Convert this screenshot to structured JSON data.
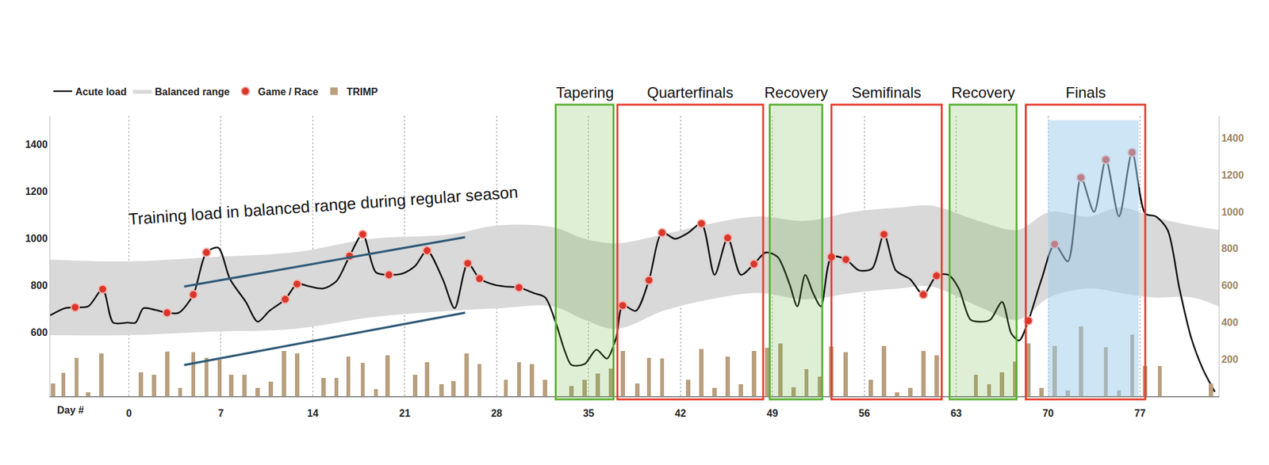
{
  "chart_data": {
    "type": "line",
    "x_label": "Day #",
    "xlim": [
      -6,
      83
    ],
    "xticks": [
      0,
      7,
      14,
      21,
      28,
      35,
      42,
      49,
      56,
      63,
      70,
      77
    ],
    "ylim": [
      330,
      1520
    ],
    "yticks": [
      600,
      800,
      1000,
      1200,
      1400
    ],
    "y2lim": [
      0,
      1520
    ],
    "y2ticks": [
      200,
      400,
      600,
      800,
      1000,
      1200,
      1400
    ],
    "grid": "x",
    "legend": "top left",
    "series": [
      {
        "name": "Acute load",
        "type": "line",
        "color": "#111111",
        "line_style": "solid",
        "x": [
          -6.0,
          -4.9,
          -4.1,
          -3.1,
          -2.0,
          -1.2,
          -0.1,
          0.5,
          1.1,
          2.0,
          2.9,
          3.8,
          4.9,
          5.9,
          6.8,
          7.7,
          8.9,
          9.8,
          10.7,
          11.9,
          12.8,
          13.8,
          14.8,
          15.8,
          16.8,
          17.8,
          18.8,
          19.8,
          20.9,
          21.8,
          22.7,
          23.9,
          24.8,
          25.8,
          26.7,
          27.8,
          28.7,
          29.7,
          30.8,
          31.7,
          32.5,
          33.2,
          33.7,
          34.7,
          35.6,
          36.4,
          37.1,
          37.6,
          38.6,
          39.6,
          40.6,
          41.6,
          42.6,
          43.6,
          44.6,
          45.6,
          46.6,
          47.6,
          48.5,
          49.4,
          50.3,
          50.9,
          51.5,
          52.1,
          52.7,
          53.5,
          54.6,
          55.6,
          56.6,
          57.5,
          58.4,
          59.5,
          60.5,
          61.5,
          62.4,
          63.2,
          64.1,
          65.0,
          65.6,
          66.5,
          67.2,
          67.8,
          68.5,
          69.5,
          70.5,
          71.5,
          72.5,
          73.5,
          74.4,
          75.4,
          76.4,
          77.4,
          78.2,
          79.1,
          80.0,
          80.9,
          81.8,
          82.7
        ],
        "values": [
          673,
          703,
          707,
          711,
          784,
          642,
          642,
          642,
          703,
          696,
          684,
          684,
          761,
          940,
          960,
          826,
          730,
          646,
          692,
          741,
          806,
          795,
          787,
          818,
          925,
          1017,
          856,
          845,
          852,
          883,
          948,
          826,
          703,
          894,
          829,
          803,
          795,
          791,
          768,
          749,
          642,
          520,
          462,
          466,
          527,
          489,
          577,
          715,
          692,
          822,
          1024,
          998,
          1024,
          1063,
          845,
          1002,
          845,
          891,
          940,
          921,
          807,
          711,
          845,
          768,
          711,
          921,
          910,
          864,
          872,
          1017,
          864,
          826,
          761,
          841,
          845,
          787,
          654,
          646,
          654,
          730,
          596,
          566,
          650,
          826,
          975,
          902,
          1258,
          1112,
          1334,
          1093,
          1365,
          1105,
          1093,
          1036,
          787,
          577,
          443,
          348
        ]
      },
      {
        "name": "Balanced range",
        "type": "band",
        "color": "#d9d9d9",
        "x": [
          -6.0,
          0,
          6.5,
          12.5,
          18.5,
          24.5,
          28.1,
          32.3,
          34.7,
          37.1,
          40.7,
          44.3,
          47.9,
          51.5,
          55.1,
          58.7,
          61.1,
          64.7,
          67.7,
          70.1,
          73.1,
          75.5,
          77.9,
          80.9,
          83.0
        ],
        "upper": [
          910,
          902,
          921,
          940,
          998,
          1017,
          1055,
          1047,
          998,
          979,
          1017,
          1063,
          1093,
          1074,
          1112,
          1131,
          1139,
          1074,
          1036,
          1112,
          1093,
          1131,
          1093,
          1055,
          1036
        ],
        "lower": [
          589,
          589,
          604,
          615,
          665,
          692,
          703,
          711,
          654,
          615,
          692,
          741,
          768,
          741,
          768,
          787,
          795,
          711,
          654,
          749,
          787,
          768,
          749,
          749,
          711
        ]
      },
      {
        "name": "Game / Race",
        "type": "scatter",
        "marker": "circle",
        "color": "#d9372b",
        "x": [
          -4.1,
          -2.0,
          2.9,
          4.9,
          5.9,
          11.9,
          12.8,
          16.8,
          17.8,
          19.8,
          22.7,
          25.8,
          26.7,
          29.7,
          37.6,
          39.6,
          40.6,
          43.6,
          45.6,
          47.6,
          53.5,
          54.6,
          57.5,
          60.5,
          61.5,
          68.5,
          70.5,
          72.5,
          74.4,
          76.4
        ],
        "values": [
          707,
          784,
          684,
          761,
          940,
          741,
          806,
          925,
          1017,
          845,
          948,
          894,
          829,
          791,
          715,
          822,
          1024,
          1063,
          1002,
          891,
          921,
          910,
          1017,
          761,
          841,
          650,
          975,
          1258,
          1334,
          1365
        ]
      },
      {
        "name": "TRIMP",
        "type": "bar",
        "axis": "y2",
        "color": "#b89f7e",
        "x": [
          -5.8,
          -5.0,
          -4.0,
          -3.1,
          -2.1,
          0.9,
          1.9,
          2.9,
          3.9,
          4.9,
          5.9,
          6.9,
          7.8,
          8.8,
          9.8,
          10.8,
          11.8,
          12.8,
          14.8,
          15.8,
          16.7,
          17.8,
          18.8,
          19.7,
          21.8,
          22.7,
          23.8,
          24.7,
          25.7,
          26.7,
          28.7,
          29.7,
          30.7,
          31.7,
          33.7,
          34.7,
          35.7,
          36.7,
          37.6,
          38.7,
          39.6,
          40.6,
          42.6,
          43.6,
          44.6,
          45.6,
          46.6,
          47.6,
          48.6,
          49.6,
          50.6,
          51.6,
          52.6,
          53.5,
          54.6,
          56.5,
          57.5,
          58.5,
          59.5,
          60.5,
          61.5,
          64.5,
          65.5,
          66.5,
          67.5,
          68.5,
          69.5,
          70.5,
          71.5,
          72.5,
          74.4,
          75.4,
          76.4,
          77.4,
          78.5,
          82.4
        ],
        "values": [
          68,
          126,
          208,
          19,
          232,
          130,
          116,
          242,
          43,
          237,
          208,
          198,
          116,
          116,
          43,
          77,
          246,
          232,
          97,
          97,
          213,
          179,
          39,
          222,
          116,
          184,
          63,
          82,
          232,
          174,
          87,
          184,
          174,
          87,
          53,
          87,
          121,
          150,
          246,
          68,
          208,
          203,
          87,
          256,
          43,
          213,
          63,
          246,
          261,
          285,
          48,
          145,
          106,
          270,
          237,
          87,
          271,
          19,
          43,
          246,
          222,
          116,
          63,
          130,
          188,
          285,
          43,
          271,
          29,
          377,
          266,
          29,
          333,
          164,
          164,
          68
        ]
      }
    ],
    "phases": [
      {
        "label": "Tapering",
        "start": 32.5,
        "end": 36.9,
        "color": "#5aaf32",
        "type": "rest"
      },
      {
        "label": "Quarterfinals",
        "start": 37.2,
        "end": 48.3,
        "color": "#e53b2c",
        "type": "competition"
      },
      {
        "label": "Recovery",
        "start": 48.8,
        "end": 52.8,
        "color": "#5aaf32",
        "type": "rest"
      },
      {
        "label": "Semifinals",
        "start": 53.5,
        "end": 61.9,
        "color": "#e53b2c",
        "type": "competition"
      },
      {
        "label": "Recovery",
        "start": 62.5,
        "end": 67.6,
        "color": "#5aaf32",
        "type": "rest"
      },
      {
        "label": "Finals",
        "start": 68.3,
        "end": 77.4,
        "color": "#e53b2c",
        "type": "competition"
      }
    ],
    "highlight": {
      "start": 70.0,
      "end": 76.9,
      "color": "#9ccbec"
    },
    "trend_lines": [
      {
        "x": [
          4.2,
          25.6
        ],
        "values": [
          795,
          1005
        ],
        "color": "#2f5a78"
      },
      {
        "x": [
          4.2,
          25.6
        ],
        "values": [
          462,
          684
        ],
        "color": "#2f5a78"
      }
    ],
    "annotations": [
      {
        "text": "Training load in balanced range during regular season",
        "x": 14.8,
        "y": 1139
      }
    ]
  }
}
